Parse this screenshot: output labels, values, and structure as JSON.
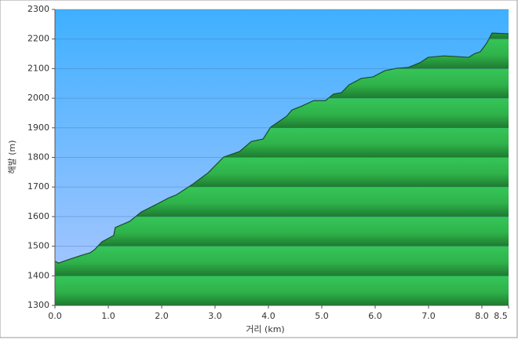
{
  "chart_data": {
    "type": "area",
    "x_label": "거리 (km)",
    "y_label": "해발 (m)",
    "x": [
      0,
      0.07,
      0.29,
      0.51,
      0.66,
      0.74,
      0.88,
      1.1,
      1.13,
      1.4,
      1.62,
      1.91,
      2.13,
      2.28,
      2.57,
      2.87,
      3.16,
      3.46,
      3.68,
      3.9,
      4.04,
      4.34,
      4.44,
      4.63,
      4.85,
      5.07,
      5.22,
      5.37,
      5.51,
      5.74,
      5.96,
      6.18,
      6.4,
      6.62,
      6.84,
      6.99,
      7.28,
      7.5,
      7.75,
      7.87,
      7.97,
      8.09,
      8.19,
      8.5
    ],
    "values": [
      1449,
      1443,
      1457,
      1470,
      1478,
      1488,
      1515,
      1536,
      1563,
      1584,
      1616,
      1642,
      1663,
      1674,
      1708,
      1748,
      1801,
      1820,
      1854,
      1862,
      1902,
      1939,
      1960,
      1974,
      1992,
      1992,
      2014,
      2019,
      2045,
      2067,
      2072,
      2093,
      2101,
      2104,
      2120,
      2138,
      2143,
      2141,
      2138,
      2151,
      2157,
      2186,
      2220,
      2218
    ],
    "color": "#2fb24a",
    "xlim": [
      0,
      8.5
    ],
    "xticks": [
      {
        "value": 0,
        "label": "0.0"
      },
      {
        "value": 1,
        "label": "1.0"
      },
      {
        "value": 2,
        "label": "2.0"
      },
      {
        "value": 3,
        "label": "3.0"
      },
      {
        "value": 4,
        "label": "4.0"
      },
      {
        "value": 5,
        "label": "5.0"
      },
      {
        "value": 6,
        "label": "6.0"
      },
      {
        "value": 7,
        "label": "7.0"
      },
      {
        "value": 8,
        "label": "8.0"
      },
      8.5
    ],
    "ylim": [
      1300,
      2300
    ],
    "yticks": [
      1300,
      1400,
      1500,
      1600,
      1700,
      1800,
      1900,
      2000,
      2100,
      2200,
      2300
    ],
    "grid": true
  }
}
